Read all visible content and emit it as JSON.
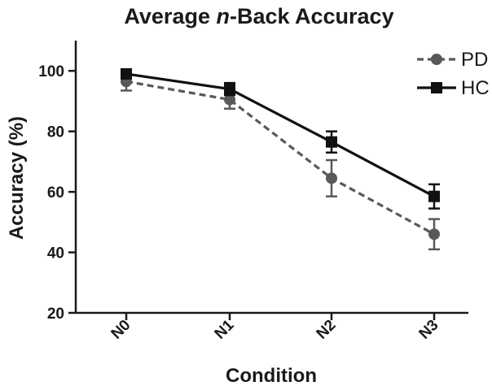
{
  "chart_data": {
    "type": "line",
    "title": {
      "prefix": "Average ",
      "italic": "n",
      "suffix": "-Back Accuracy"
    },
    "xlabel": "Condition",
    "ylabel": "Accuracy (%)",
    "categories": [
      "N0",
      "N1",
      "N2",
      "N3"
    ],
    "ylim": [
      20,
      110
    ],
    "yticks": [
      20,
      40,
      60,
      80,
      100
    ],
    "grid": false,
    "legend_position": "top-right",
    "series": [
      {
        "name": "PD",
        "values": [
          96.5,
          90.5,
          64.5,
          46.0
        ],
        "error": [
          3.0,
          3.0,
          6.0,
          5.0
        ],
        "line_style": "dashed",
        "marker": "circle",
        "color": "#595959"
      },
      {
        "name": "HC",
        "values": [
          99.0,
          94.0,
          76.5,
          58.5
        ],
        "error": [
          1.5,
          2.0,
          3.5,
          4.0
        ],
        "line_style": "solid",
        "marker": "square",
        "color": "#111111"
      }
    ]
  }
}
